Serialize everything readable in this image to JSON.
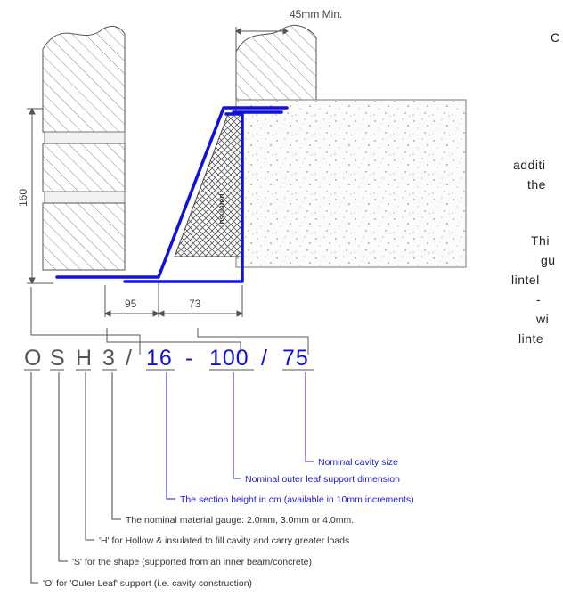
{
  "colors": {
    "accent_blue": "#1010e0",
    "legend_blue": "#1a1ad8",
    "text_dark": "#333333"
  },
  "dimensions": {
    "min_bearing": "45mm Min.",
    "height": "160",
    "inner_leg": "95",
    "outer_leg": "73"
  },
  "insulation_label": "Insulated",
  "code": {
    "o": "O",
    "s": "S",
    "h": "H",
    "three": "3",
    "slash1": "/",
    "height": "16",
    "dash": "-",
    "support": "100",
    "slash2": "/",
    "cavity": "75"
  },
  "legend": [
    "Nominal cavity size",
    "Nominal outer leaf support dimension",
    "The section height in cm (available in 10mm increments)",
    "The nominal material gauge: 2.0mm, 3.0mm or 4.0mm.",
    "'H' for Hollow & insulated to fill cavity and carry greater loads",
    "'S' for the shape (supported from an inner beam/concrete)",
    "'O' for 'Outer Leaf' support (i.e. cavity construction)"
  ],
  "side_text": [
    "C",
    "additi",
    "the",
    "Thi",
    "gu",
    "lintel",
    "-",
    "wi",
    "linte"
  ]
}
